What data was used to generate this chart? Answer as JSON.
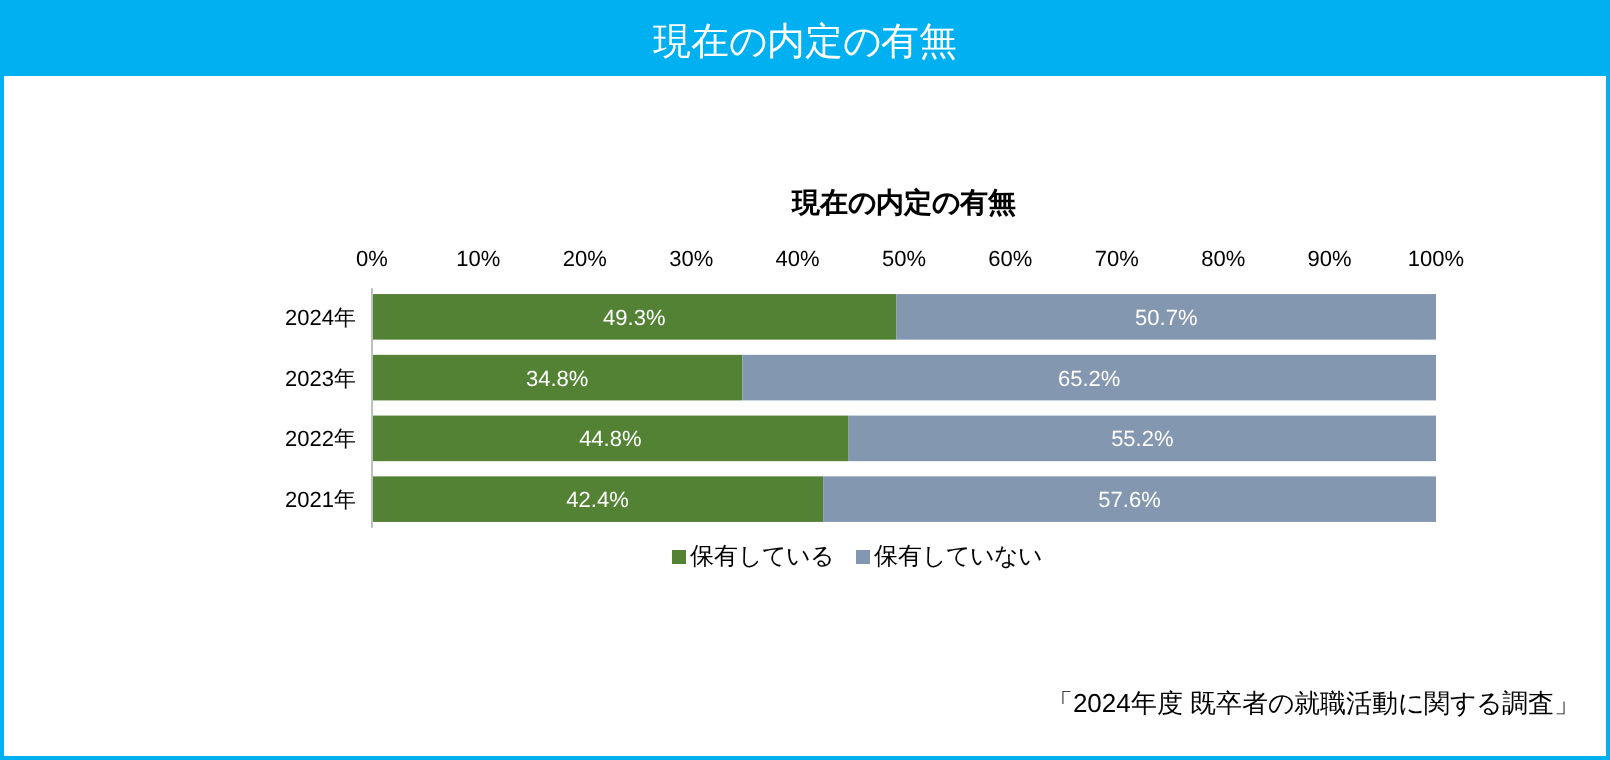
{
  "chart_data": {
    "type": "bar",
    "orientation": "horizontal",
    "stacked": true,
    "title": "現在の内定の有無",
    "categories": [
      "2024年",
      "2023年",
      "2022年",
      "2021年"
    ],
    "series": [
      {
        "name": "保有している",
        "color": "#548235",
        "values": [
          49.3,
          34.8,
          44.8,
          42.4
        ],
        "value_labels": [
          "49.3%",
          "34.8%",
          "44.8%",
          "42.4%"
        ]
      },
      {
        "name": "保有していない",
        "color": "#8497b0",
        "values": [
          50.7,
          65.2,
          55.2,
          57.6
        ],
        "value_labels": [
          "50.7%",
          "65.2%",
          "55.2%",
          "57.6%"
        ]
      }
    ],
    "xlim": [
      0,
      100
    ],
    "xticks": [
      {
        "value": 0,
        "label": "0%"
      },
      {
        "value": 10,
        "label": "10%"
      },
      {
        "value": 20,
        "label": "20%"
      },
      {
        "value": 30,
        "label": "30%"
      },
      {
        "value": 40,
        "label": "40%"
      },
      {
        "value": 50,
        "label": "50%"
      },
      {
        "value": 60,
        "label": "60%"
      },
      {
        "value": 70,
        "label": "70%"
      },
      {
        "value": 80,
        "label": "80%"
      },
      {
        "value": 90,
        "label": "90%"
      },
      {
        "value": 100,
        "label": "100%"
      }
    ],
    "grid": false,
    "legend": "bottom",
    "annotations": [
      "現在の内定の有無",
      "「2024年度 既卒者の就職活動に関する調査」"
    ]
  }
}
